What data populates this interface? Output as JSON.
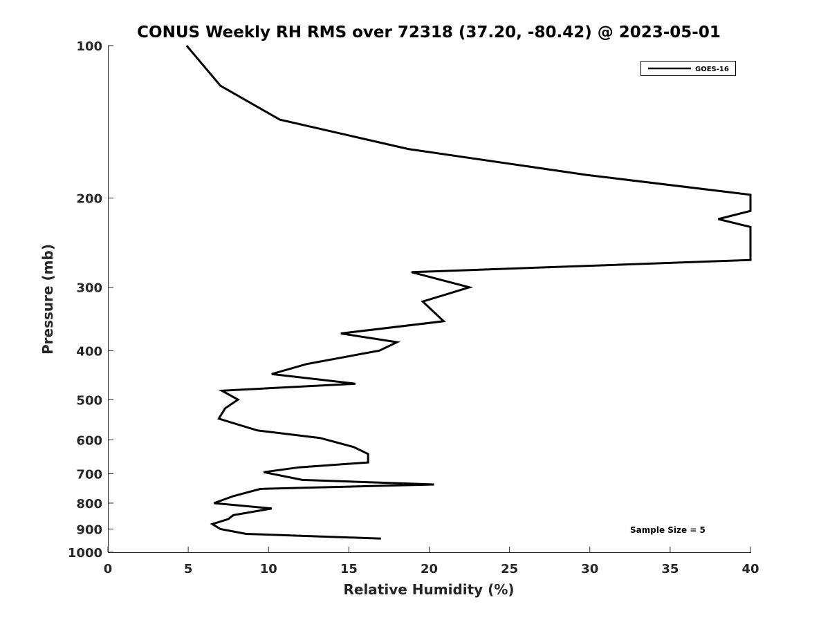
{
  "chart_data": {
    "type": "line",
    "title": "CONUS Weekly RH RMS over 72318 (37.20, -80.42) @ 2023-05-01",
    "xlabel": "Relative Humidity (%)",
    "ylabel": "Pressure (mb)",
    "xlim": [
      0,
      40
    ],
    "ylim": [
      100,
      1000
    ],
    "y_scale": "log",
    "y_reversed": true,
    "grid": false,
    "legend_position": "top-right",
    "x_ticks": [
      "0",
      "5",
      "10",
      "15",
      "20",
      "25",
      "30",
      "35",
      "40"
    ],
    "y_ticks": [
      "100",
      "200",
      "300",
      "400",
      "500",
      "600",
      "700",
      "800",
      "900",
      "1000"
    ],
    "annotation": "Sample Size = 5",
    "series": [
      {
        "name": "GOES-16",
        "color": "#000000",
        "points": [
          [
            4.9,
            100
          ],
          [
            7.0,
            120
          ],
          [
            10.7,
            140
          ],
          [
            18.7,
            160
          ],
          [
            29.8,
            180
          ],
          [
            40.0,
            197
          ],
          [
            40.0,
            212
          ],
          [
            38.0,
            220
          ],
          [
            40.0,
            228
          ],
          [
            40.0,
            265
          ],
          [
            18.9,
            280
          ],
          [
            22.5,
            300
          ],
          [
            19.6,
            320
          ],
          [
            20.9,
            350
          ],
          [
            14.5,
            370
          ],
          [
            18.0,
            385
          ],
          [
            16.9,
            400
          ],
          [
            12.4,
            425
          ],
          [
            10.2,
            445
          ],
          [
            15.4,
            465
          ],
          [
            7.1,
            480
          ],
          [
            8.1,
            500
          ],
          [
            7.3,
            520
          ],
          [
            6.9,
            545
          ],
          [
            9.3,
            575
          ],
          [
            13.2,
            595
          ],
          [
            15.3,
            620
          ],
          [
            16.2,
            640
          ],
          [
            16.2,
            665
          ],
          [
            11.9,
            680
          ],
          [
            9.7,
            695
          ],
          [
            12.1,
            720
          ],
          [
            20.3,
            735
          ],
          [
            9.5,
            750
          ],
          [
            7.8,
            775
          ],
          [
            6.6,
            800
          ],
          [
            10.2,
            820
          ],
          [
            7.8,
            845
          ],
          [
            7.5,
            860
          ],
          [
            6.5,
            880
          ],
          [
            7.0,
            900
          ],
          [
            8.6,
            920
          ],
          [
            17.0,
            940
          ]
        ]
      }
    ]
  }
}
